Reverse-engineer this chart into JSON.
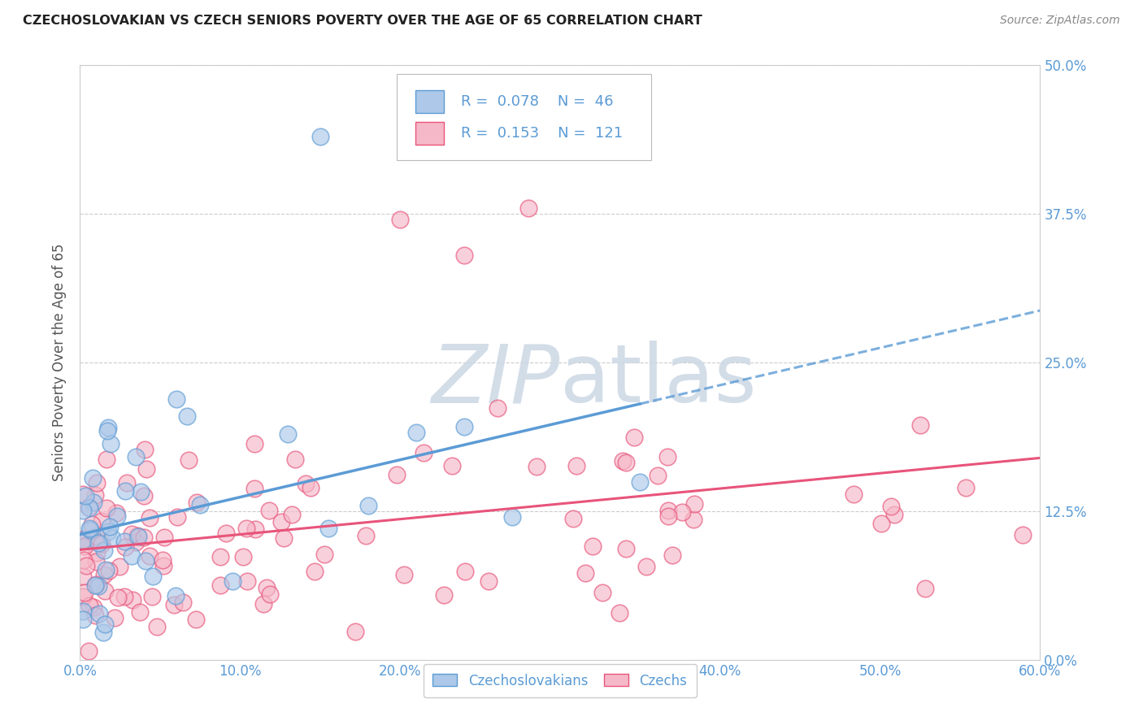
{
  "title": "CZECHOSLOVAKIAN VS CZECH SENIORS POVERTY OVER THE AGE OF 65 CORRELATION CHART",
  "source": "Source: ZipAtlas.com",
  "xlabel_vals": [
    0,
    10,
    20,
    30,
    40,
    50,
    60
  ],
  "xlabel_labels": [
    "0.0%",
    "10.0%",
    "20.0%",
    "30.0%",
    "40.0%",
    "50.0%",
    "60.0%"
  ],
  "ylabel_vals": [
    0,
    12.5,
    25.0,
    37.5,
    50.0
  ],
  "ylabel_labels": [
    "0.0%",
    "12.5%",
    "25.0%",
    "37.5%",
    "50.0%"
  ],
  "ylabel_label": "Seniors Poverty Over the Age of 65",
  "xlim": [
    0,
    60
  ],
  "ylim": [
    0,
    50
  ],
  "legend_entries": [
    {
      "label": "Czechoslovakians",
      "R": "0.078",
      "N": "46",
      "face_color": "#adc8e8",
      "edge_color": "#5b9bd5"
    },
    {
      "label": "Czechs",
      "R": "0.153",
      "N": "121",
      "face_color": "#f5b8c8",
      "edge_color": "#e8547a"
    }
  ],
  "watermark": "ZIPatlas",
  "watermark_color": "#ccd8e5",
  "background_color": "#ffffff",
  "grid_color": "#cccccc",
  "title_color": "#222222",
  "source_color": "#888888",
  "tick_color": "#5b9bd5",
  "ylabel_color": "#555555"
}
